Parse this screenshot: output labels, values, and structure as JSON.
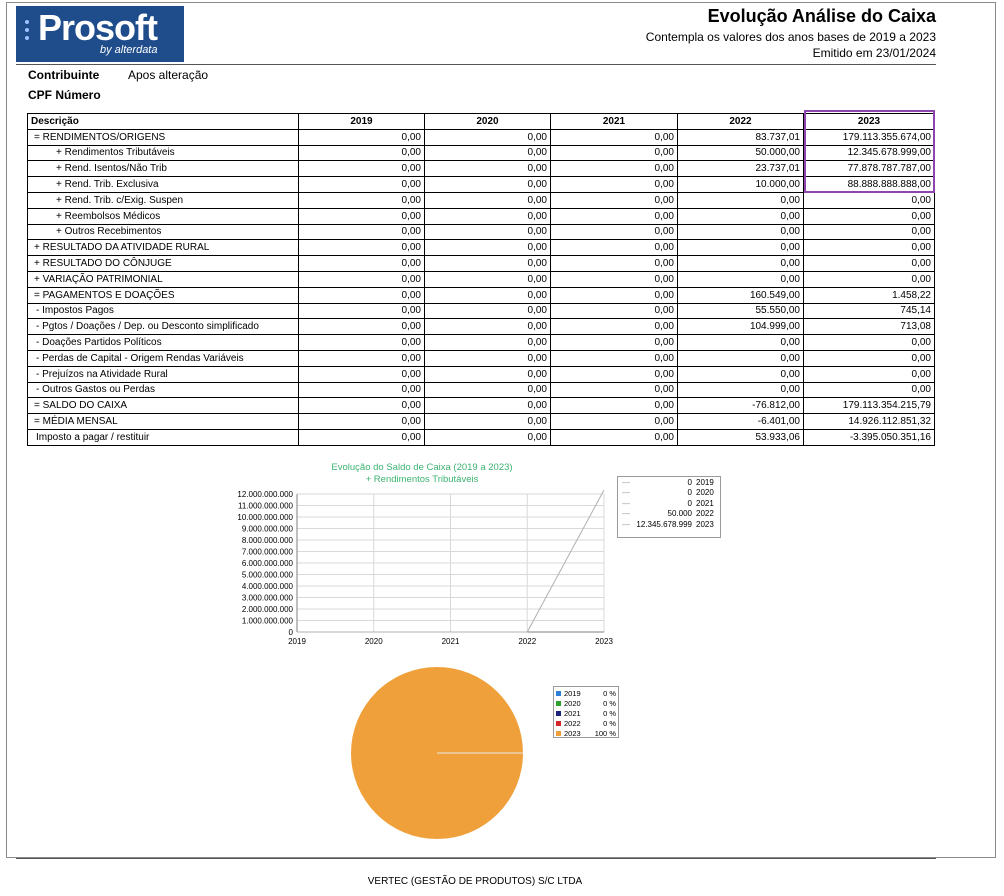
{
  "logo": {
    "text": "Prosoft",
    "subtext": "by alterdata",
    "bg_color": "#1f4d8c"
  },
  "header": {
    "title": "Evolução Análise do Caixa",
    "subtitle": "Contempla os valores dos anos bases de 2019 a 2023",
    "emitted": "Emitido em 23/01/2024"
  },
  "info": {
    "contribuinte_label": "Contribuinte",
    "contribuinte_value": "Apos alteração",
    "cpf_label": "CPF Número"
  },
  "table": {
    "columns": [
      "Descrição",
      "2019",
      "2020",
      "2021",
      "2022",
      "2023"
    ],
    "rows": [
      {
        "desc": "= RENDIMENTOS/ORIGENS",
        "level": 1,
        "values": [
          "0,00",
          "0,00",
          "0,00",
          "83.737,01",
          "179.113.355.674,00"
        ]
      },
      {
        "desc": "+ Rendimentos Tributáveis",
        "level": 2,
        "values": [
          "0,00",
          "0,00",
          "0,00",
          "50.000,00",
          "12.345.678.999,00"
        ]
      },
      {
        "desc": "+ Rend. Isentos/Não Trib",
        "level": 2,
        "values": [
          "0,00",
          "0,00",
          "0,00",
          "23.737,01",
          "77.878.787.787,00"
        ]
      },
      {
        "desc": "+ Rend. Trib. Exclusiva",
        "level": 2,
        "values": [
          "0,00",
          "0,00",
          "0,00",
          "10.000,00",
          "88.888.888.888,00"
        ]
      },
      {
        "desc": "+ Rend. Trib. c/Exig. Suspen",
        "level": 2,
        "values": [
          "0,00",
          "0,00",
          "0,00",
          "0,00",
          "0,00"
        ]
      },
      {
        "desc": "+ Reembolsos Médicos",
        "level": 2,
        "values": [
          "0,00",
          "0,00",
          "0,00",
          "0,00",
          "0,00"
        ]
      },
      {
        "desc": "+ Outros Recebimentos",
        "level": 2,
        "values": [
          "0,00",
          "0,00",
          "0,00",
          "0,00",
          "0,00"
        ]
      },
      {
        "desc": "+ RESULTADO DA ATIVIDADE RURAL",
        "level": 1,
        "values": [
          "0,00",
          "0,00",
          "0,00",
          "0,00",
          "0,00"
        ]
      },
      {
        "desc": "+ RESULTADO DO CÔNJUGE",
        "level": 1,
        "values": [
          "0,00",
          "0,00",
          "0,00",
          "0,00",
          "0,00"
        ]
      },
      {
        "desc": "+ VARIAÇÃO PATRIMONIAL",
        "level": 1,
        "values": [
          "0,00",
          "0,00",
          "0,00",
          "0,00",
          "0,00"
        ]
      },
      {
        "desc": "= PAGAMENTOS E DOAÇÕES",
        "level": 1,
        "values": [
          "0,00",
          "0,00",
          "0,00",
          "160.549,00",
          "1.458,22"
        ]
      },
      {
        "desc": "- Impostos Pagos",
        "level": 3,
        "values": [
          "0,00",
          "0,00",
          "0,00",
          "55.550,00",
          "745,14"
        ]
      },
      {
        "desc": "- Pgtos / Doações / Dep. ou Desconto simplificado",
        "level": 3,
        "values": [
          "0,00",
          "0,00",
          "0,00",
          "104.999,00",
          "713,08"
        ]
      },
      {
        "desc": "- Doações Partidos Políticos",
        "level": 3,
        "values": [
          "0,00",
          "0,00",
          "0,00",
          "0,00",
          "0,00"
        ]
      },
      {
        "desc": "- Perdas de Capital - Origem Rendas Variáveis",
        "level": 3,
        "values": [
          "0,00",
          "0,00",
          "0,00",
          "0,00",
          "0,00"
        ]
      },
      {
        "desc": "- Prejuízos na Atividade Rural",
        "level": 3,
        "values": [
          "0,00",
          "0,00",
          "0,00",
          "0,00",
          "0,00"
        ]
      },
      {
        "desc": "- Outros Gastos ou Perdas",
        "level": 3,
        "values": [
          "0,00",
          "0,00",
          "0,00",
          "0,00",
          "0,00"
        ]
      },
      {
        "desc": "= SALDO DO CAIXA",
        "level": 1,
        "values": [
          "0,00",
          "0,00",
          "0,00",
          "-76.812,00",
          "179.113.354.215,79"
        ]
      },
      {
        "desc": "= MÉDIA MENSAL",
        "level": 1,
        "values": [
          "0,00",
          "0,00",
          "0,00",
          "-6.401,00",
          "14.926.112.851,32"
        ]
      },
      {
        "desc": "Imposto a pagar / restituir",
        "level": 3,
        "values": [
          "0,00",
          "0,00",
          "0,00",
          "53.933,06",
          "-3.395.050.351,16"
        ]
      }
    ],
    "highlight_color": "#8e44ad"
  },
  "chart_data": [
    {
      "type": "line",
      "title": "Evolução do Saldo de Caixa (2019 a 2023)",
      "subtitle": "+ Rendimentos Tributáveis",
      "title_color": "#3cb371",
      "x": [
        "2019",
        "2020",
        "2021",
        "2022",
        "2023"
      ],
      "series": [
        {
          "values": [
            0,
            0,
            0,
            50000,
            12345678999
          ],
          "color": "#b0b0b0"
        }
      ],
      "ylim": [
        0,
        12000000000
      ],
      "y_ticks": [
        "0",
        "1.000.000.000",
        "2.000.000.000",
        "3.000.000.000",
        "4.000.000.000",
        "5.000.000.000",
        "6.000.000.000",
        "7.000.000.000",
        "8.000.000.000",
        "9.000.000.000",
        "10.000.000.000",
        "11.000.000.000",
        "12.000.000.000"
      ],
      "grid": true,
      "legend_position": "right",
      "legend": [
        {
          "label": "0",
          "year": "2019"
        },
        {
          "label": "0",
          "year": "2020"
        },
        {
          "label": "0",
          "year": "2021"
        },
        {
          "label": "50.000",
          "year": "2022"
        },
        {
          "label": "12.345.678.999",
          "year": "2023"
        }
      ]
    },
    {
      "type": "pie",
      "slices": [
        {
          "label": "2019",
          "pct": "0 %",
          "value": 0,
          "color": "#2f7fd6"
        },
        {
          "label": "2020",
          "pct": "0 %",
          "value": 0,
          "color": "#2ca02c"
        },
        {
          "label": "2021",
          "pct": "0 %",
          "value": 0,
          "color": "#1a237e"
        },
        {
          "label": "2022",
          "pct": "0 %",
          "value": 0,
          "color": "#d62728"
        },
        {
          "label": "2023",
          "pct": "100 %",
          "value": 100,
          "color": "#f0a03a"
        }
      ],
      "legend_position": "right"
    }
  ],
  "footer": {
    "text": "VERTEC (GESTÃO DE PRODUTOS) S/C LTDA"
  }
}
